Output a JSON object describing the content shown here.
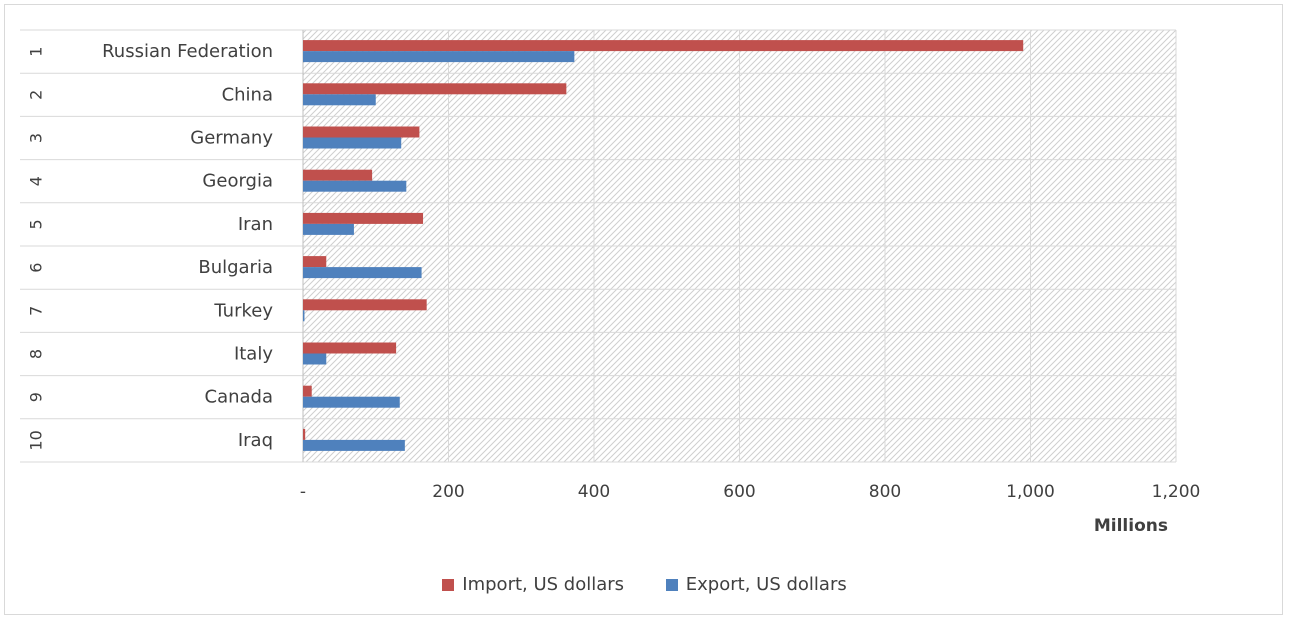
{
  "chart_data": {
    "type": "bar",
    "orientation": "horizontal",
    "categories": [
      {
        "rank": "1",
        "name": "Russian Federation"
      },
      {
        "rank": "2",
        "name": "China"
      },
      {
        "rank": "3",
        "name": "Germany"
      },
      {
        "rank": "4",
        "name": "Georgia"
      },
      {
        "rank": "5",
        "name": "Iran"
      },
      {
        "rank": "6",
        "name": "Bulgaria"
      },
      {
        "rank": "7",
        "name": "Turkey"
      },
      {
        "rank": "8",
        "name": "Italy"
      },
      {
        "rank": "9",
        "name": "Canada"
      },
      {
        "rank": "10",
        "name": "Iraq"
      }
    ],
    "series": [
      {
        "name": "Import, US dollars",
        "color": "#c0504d",
        "values": [
          990,
          362,
          160,
          95,
          165,
          32,
          170,
          128,
          12,
          3
        ]
      },
      {
        "name": "Export, US dollars",
        "color": "#4f81bd",
        "values": [
          373,
          100,
          135,
          142,
          70,
          163,
          2,
          32,
          133,
          140
        ]
      }
    ],
    "xlim": [
      0,
      1200
    ],
    "x_ticks": [
      {
        "value": 0,
        "label": "-"
      },
      {
        "value": 200,
        "label": "200"
      },
      {
        "value": 400,
        "label": "400"
      },
      {
        "value": 600,
        "label": "600"
      },
      {
        "value": 800,
        "label": "800"
      },
      {
        "value": 1000,
        "label": "1,000"
      },
      {
        "value": 1200,
        "label": "1,200"
      }
    ],
    "x_unit_label": "Millions",
    "grid": true,
    "legend": "bottom"
  }
}
